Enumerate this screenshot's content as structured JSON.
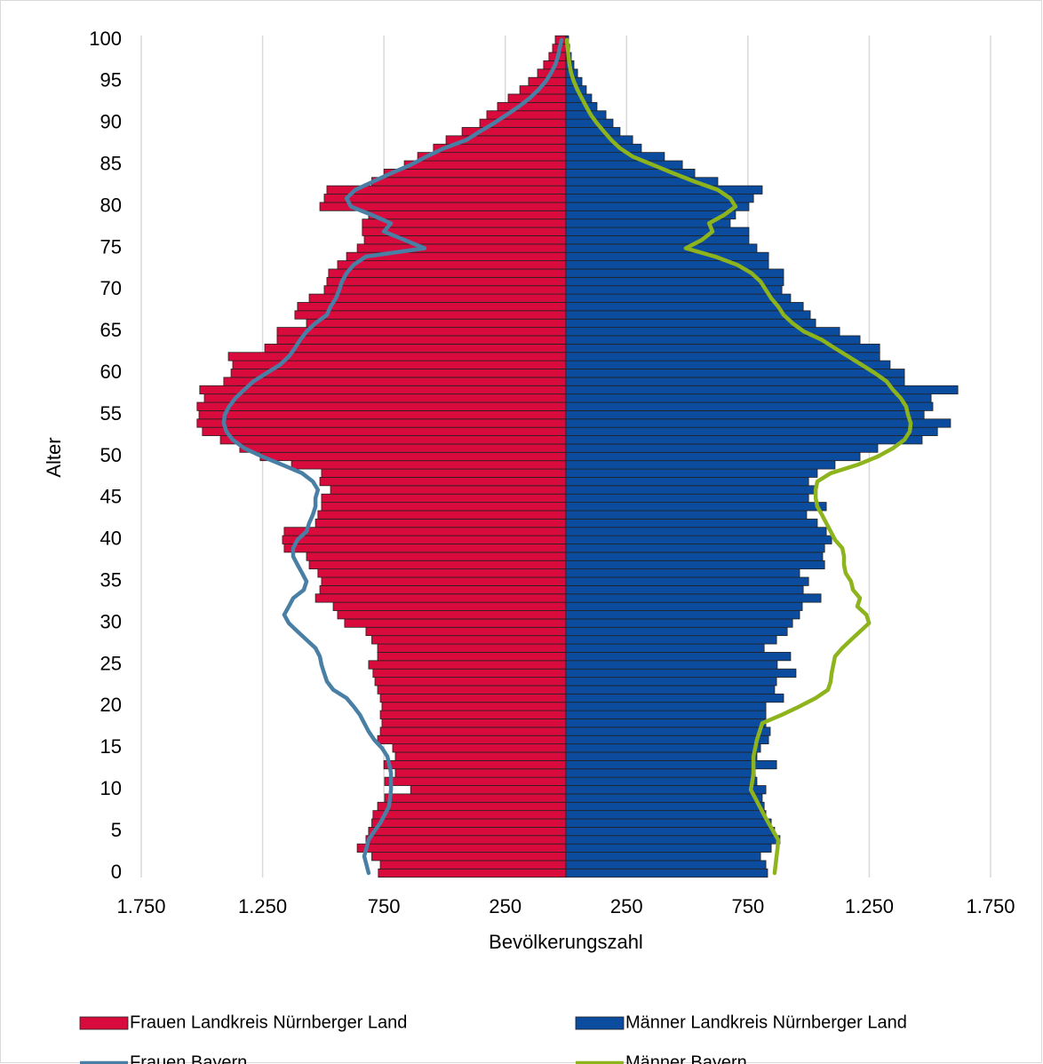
{
  "chart_data": {
    "type": "bar",
    "xlabel": "Bevölkerungszahl",
    "ylabel": "Alter",
    "y": [
      0,
      1,
      2,
      3,
      4,
      5,
      6,
      7,
      8,
      9,
      10,
      11,
      12,
      13,
      14,
      15,
      16,
      17,
      18,
      19,
      20,
      21,
      22,
      23,
      24,
      25,
      26,
      27,
      28,
      29,
      30,
      31,
      32,
      33,
      34,
      35,
      36,
      37,
      38,
      39,
      40,
      41,
      42,
      43,
      44,
      45,
      46,
      47,
      48,
      49,
      50,
      51,
      52,
      53,
      54,
      55,
      56,
      57,
      58,
      59,
      60,
      61,
      62,
      63,
      64,
      65,
      66,
      67,
      68,
      69,
      70,
      71,
      72,
      73,
      74,
      75,
      76,
      77,
      78,
      79,
      80,
      81,
      82,
      83,
      84,
      85,
      86,
      87,
      88,
      89,
      90,
      91,
      92,
      93,
      94,
      95,
      96,
      97,
      98,
      99,
      100
    ],
    "ylim": [
      0,
      100
    ],
    "yticks": [
      0,
      5,
      10,
      15,
      20,
      25,
      30,
      35,
      40,
      45,
      50,
      55,
      60,
      65,
      70,
      75,
      80,
      85,
      90,
      95,
      100
    ],
    "xlim": [
      -1750,
      1750
    ],
    "xticks": [
      {
        "value": -1750,
        "label": "1.750"
      },
      {
        "value": -1250,
        "label": "1.250"
      },
      {
        "value": -750,
        "label": "750"
      },
      {
        "value": -250,
        "label": "250"
      },
      250,
      750,
      {
        "value": 1250,
        "label": "1.250"
      },
      {
        "value": 1750,
        "label": "1.750"
      }
    ],
    "grid": true,
    "series": [
      {
        "name": "Frauen Landkreis Nürnberger Land",
        "type": "bar",
        "color": "#d90a3c",
        "values": [
          -773,
          -765,
          -800,
          -860,
          -824,
          -813,
          -800,
          -795,
          -776,
          -747,
          -640,
          -747,
          -703,
          -750,
          -703,
          -714,
          -776,
          -765,
          -758,
          -765,
          -758,
          -765,
          -776,
          -787,
          -795,
          -813,
          -776,
          -776,
          -800,
          -824,
          -912,
          -941,
          -959,
          -1032,
          -1014,
          -1007,
          -1022,
          -1058,
          -1069,
          -1161,
          -1168,
          -1161,
          -1032,
          -1022,
          -1007,
          -1007,
          -970,
          -1014,
          -1007,
          -1131,
          -1260,
          -1344,
          -1424,
          -1498,
          -1520,
          -1512,
          -1520,
          -1490,
          -1509,
          -1410,
          -1380,
          -1373,
          -1391,
          -1241,
          -1190,
          -1190,
          -1069,
          -1117,
          -1106,
          -1058,
          -996,
          -985,
          -978,
          -941,
          -904,
          -860,
          -831,
          -839,
          -839,
          -813,
          -1014,
          -996,
          -985,
          -800,
          -750,
          -666,
          -611,
          -546,
          -494,
          -428,
          -355,
          -326,
          -282,
          -238,
          -190,
          -154,
          -117,
          -92,
          -70,
          -55,
          -44
        ]
      },
      {
        "name": "Männer Landkreis Nürnberger Land",
        "type": "bar",
        "color": "#0b4c9e",
        "values": [
          831,
          824,
          802,
          846,
          882,
          860,
          846,
          824,
          817,
          809,
          824,
          787,
          780,
          868,
          787,
          802,
          835,
          842,
          824,
          824,
          824,
          897,
          860,
          868,
          948,
          871,
          926,
          817,
          868,
          912,
          934,
          963,
          974,
          1051,
          978,
          1000,
          963,
          1066,
          1058,
          1066,
          1095,
          1073,
          1036,
          992,
          1073,
          1000,
          1029,
          1000,
          1036,
          1109,
          1212,
          1285,
          1468,
          1531,
          1585,
          1476,
          1512,
          1505,
          1615,
          1395,
          1395,
          1336,
          1293,
          1293,
          1212,
          1128,
          1029,
          1007,
          978,
          926,
          890,
          897,
          897,
          835,
          835,
          787,
          754,
          754,
          677,
          699,
          754,
          773,
          809,
          626,
          531,
          480,
          406,
          311,
          275,
          223,
          194,
          165,
          128,
          106,
          84,
          66,
          48,
          33,
          22,
          15,
          11
        ]
      },
      {
        "name": "Frauen Bayern",
        "type": "line",
        "color": "#4a7fa5",
        "values": [
          -813,
          -822,
          -831,
          -822,
          -813,
          -790,
          -765,
          -747,
          -729,
          -725,
          -721,
          -721,
          -721,
          -728,
          -736,
          -758,
          -790,
          -813,
          -831,
          -849,
          -875,
          -904,
          -959,
          -985,
          -996,
          -1007,
          -1014,
          -1032,
          -1069,
          -1106,
          -1142,
          -1161,
          -1142,
          -1124,
          -1080,
          -1069,
          -1087,
          -1106,
          -1124,
          -1124,
          -1106,
          -1069,
          -1058,
          -1043,
          -1032,
          -1032,
          -1022,
          -1043,
          -1087,
          -1168,
          -1252,
          -1326,
          -1373,
          -1399,
          -1410,
          -1406,
          -1388,
          -1362,
          -1326,
          -1289,
          -1234,
          -1179,
          -1142,
          -1117,
          -1095,
          -1069,
          -1032,
          -985,
          -970,
          -948,
          -934,
          -923,
          -904,
          -875,
          -824,
          -582,
          -666,
          -750,
          -721,
          -800,
          -886,
          -904,
          -868,
          -795,
          -721,
          -640,
          -575,
          -502,
          -410,
          -355,
          -297,
          -245,
          -194,
          -150,
          -114,
          -84,
          -62,
          -44,
          -33,
          -26,
          -18
        ]
      },
      {
        "name": "Männer Bayern",
        "type": "line",
        "color": "#8db31d",
        "values": [
          860,
          864,
          868,
          872,
          875,
          855,
          835,
          816,
          798,
          780,
          762,
          768,
          773,
          773,
          773,
          780,
          787,
          798,
          809,
          890,
          963,
          1029,
          1080,
          1091,
          1095,
          1102,
          1109,
          1139,
          1175,
          1212,
          1249,
          1238,
          1201,
          1212,
          1183,
          1175,
          1153,
          1146,
          1146,
          1139,
          1109,
          1091,
          1073,
          1055,
          1036,
          1029,
          1029,
          1036,
          1091,
          1201,
          1285,
          1348,
          1395,
          1417,
          1421,
          1410,
          1402,
          1380,
          1348,
          1322,
          1274,
          1219,
          1164,
          1109,
          1055,
          981,
          934,
          897,
          875,
          846,
          824,
          802,
          765,
          707,
          615,
          494,
          560,
          604,
          590,
          652,
          699,
          677,
          626,
          531,
          443,
          359,
          275,
          223,
          187,
          157,
          128,
          103,
          84,
          66,
          48,
          33,
          22,
          15,
          11,
          7,
          4
        ]
      }
    ]
  }
}
